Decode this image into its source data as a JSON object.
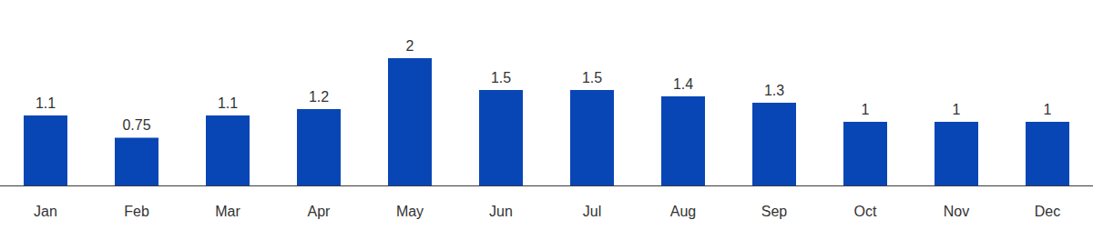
{
  "chart_data": {
    "type": "bar",
    "categories": [
      "Jan",
      "Feb",
      "Mar",
      "Apr",
      "May",
      "Jun",
      "Jul",
      "Aug",
      "Sep",
      "Oct",
      "Nov",
      "Dec"
    ],
    "values": [
      1.1,
      0.75,
      1.1,
      1.2,
      2,
      1.5,
      1.5,
      1.4,
      1.3,
      1,
      1,
      1
    ],
    "color": "#0846b6",
    "ylim": [
      0,
      2
    ],
    "yticks": [
      0,
      2
    ],
    "grid": false,
    "data_labels": true,
    "tick_labels": "x"
  }
}
